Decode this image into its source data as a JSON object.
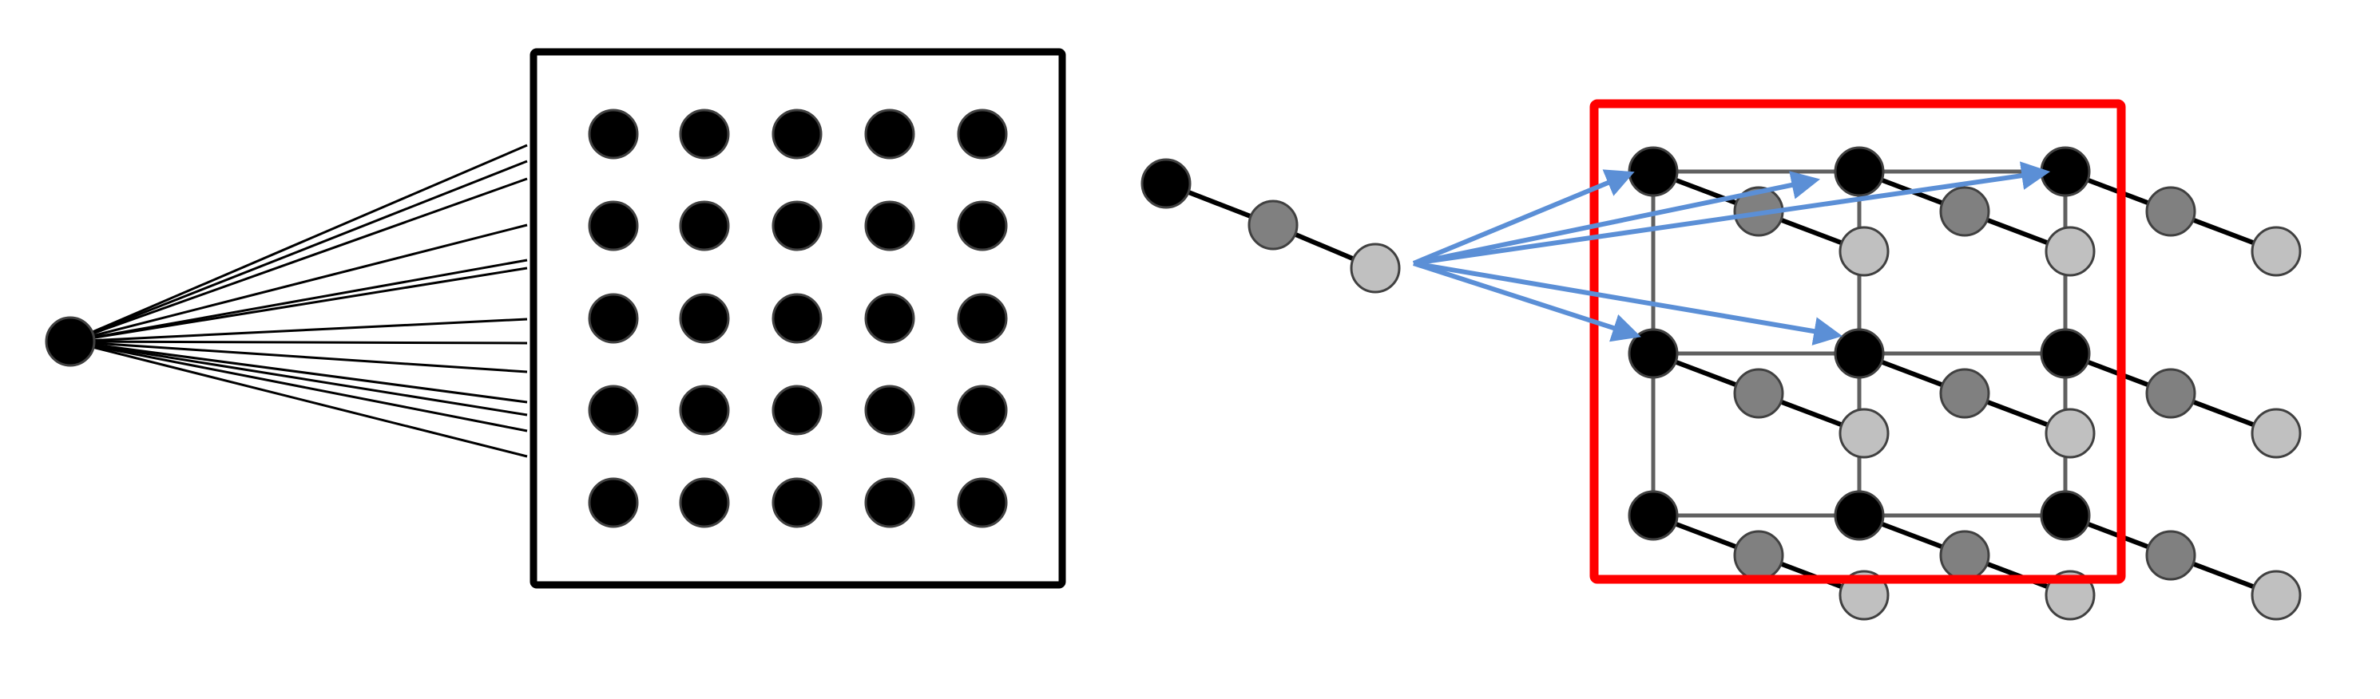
{
  "colors": {
    "background": "#ffffff",
    "node_black": "#000000",
    "node_dark_gray": "#808080",
    "node_light_gray": "#c0c0c0",
    "node_outline": "#404040",
    "edge": "#000000",
    "grid_edge": "#606060",
    "arrow": "#5b8fd6",
    "highlight_box": "#ff0000"
  },
  "left_panel": {
    "source_node": "black",
    "fan_line_count": 13,
    "grid_rows": 5,
    "grid_cols": 5
  },
  "right_panel": {
    "input_chain": [
      "black",
      "dark_gray",
      "light_gray"
    ],
    "lattice_rows": 3,
    "lattice_cols": 3,
    "chain_per_lattice_node": [
      "black",
      "dark_gray",
      "light_gray"
    ],
    "arrow_count": 4
  }
}
